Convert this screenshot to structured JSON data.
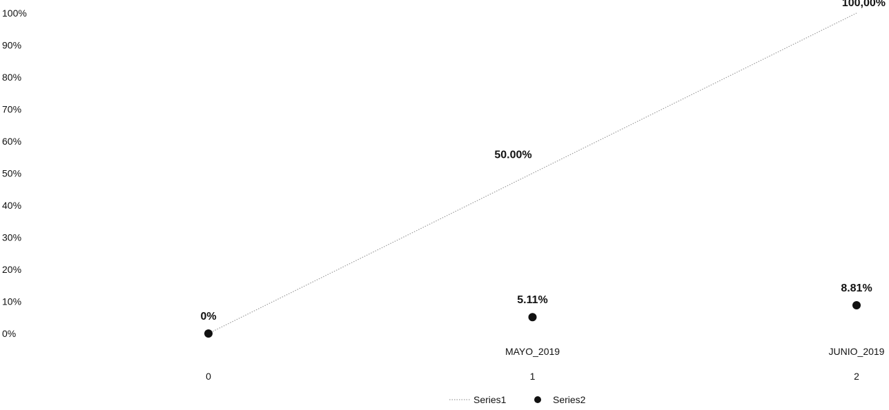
{
  "chart_data": {
    "type": "line",
    "x": [
      0,
      1,
      2
    ],
    "x_tick_labels": [
      "0",
      "1",
      "2"
    ],
    "category_labels": [
      "",
      "MAYO_2019",
      "JUNIO_2019"
    ],
    "ylim": [
      0,
      100
    ],
    "y_ticks": [
      "0%",
      "10%",
      "20%",
      "30%",
      "40%",
      "50%",
      "60%",
      "70%",
      "80%",
      "90%",
      "100%"
    ],
    "grid": false,
    "legend_position": "bottom",
    "series": [
      {
        "name": "Series1",
        "style": "dotted-line",
        "color": "#9a9a9a",
        "values": [
          0,
          50,
          100
        ],
        "data_labels": [
          "",
          "50.00%",
          "100,00%"
        ]
      },
      {
        "name": "Series2",
        "style": "markers",
        "color": "#111111",
        "values": [
          0,
          5.11,
          8.81
        ],
        "data_labels": [
          "0%",
          "5.11%",
          "8.81%"
        ]
      }
    ]
  }
}
